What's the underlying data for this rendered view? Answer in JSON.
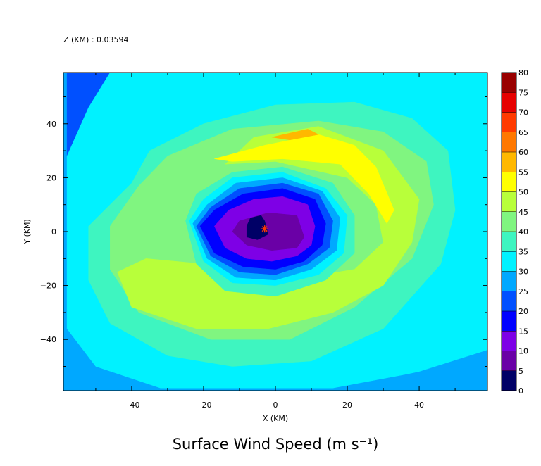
{
  "chart_data": {
    "type": "heatmap",
    "header": "Z (KM) : 0.03594",
    "title": "Surface Wind Speed (m s⁻¹)",
    "xlabel": "X (KM)",
    "ylabel": "Y (KM)",
    "xlim": [
      -59,
      59
    ],
    "ylim": [
      -59,
      59
    ],
    "x_ticks": [
      -40,
      -20,
      0,
      20,
      40
    ],
    "y_ticks": [
      -40,
      -20,
      0,
      20,
      40
    ],
    "x_tick_labels": [
      "−40",
      "−20",
      "0",
      "20",
      "40"
    ],
    "y_tick_labels": [
      "−40",
      "−20",
      "0",
      "20",
      "40"
    ],
    "grid": false,
    "colorbar": {
      "levels": [
        0,
        5,
        10,
        15,
        20,
        25,
        30,
        35,
        40,
        45,
        50,
        55,
        60,
        65,
        70,
        75,
        80
      ],
      "labels": [
        "0",
        "5",
        "10",
        "15",
        "20",
        "25",
        "30",
        "35",
        "40",
        "45",
        "50",
        "55",
        "60",
        "65",
        "70",
        "75",
        "80"
      ],
      "colors": [
        "#000066",
        "#6a00a6",
        "#7e00e6",
        "#0000ff",
        "#0050ff",
        "#00a8ff",
        "#00f2ff",
        "#3ef5c0",
        "#80f580",
        "#b8ff3a",
        "#ffff00",
        "#ffb800",
        "#ff7800",
        "#ff3a00",
        "#e60000",
        "#990000"
      ]
    },
    "storm_center": {
      "x": -3,
      "y": 1,
      "marker": "asterisk",
      "color": "#ff3a00"
    },
    "background_class": 5,
    "regions": [
      {
        "class": 4,
        "pts": [
          [
            -58,
            59
          ],
          [
            -40,
            59
          ],
          [
            -52,
            38
          ],
          [
            -58,
            28
          ]
        ]
      },
      {
        "class": 6,
        "pts": [
          [
            -46,
            59
          ],
          [
            59,
            59
          ],
          [
            59,
            -44
          ],
          [
            40,
            -52
          ],
          [
            16,
            -58
          ],
          [
            -32,
            -58
          ],
          [
            -50,
            -50
          ],
          [
            -58,
            -36
          ],
          [
            -58,
            28
          ],
          [
            -52,
            46
          ]
        ]
      },
      {
        "class": 5,
        "pts": [
          [
            59,
            -44
          ],
          [
            59,
            -59
          ],
          [
            16,
            -59
          ],
          [
            40,
            -52
          ]
        ]
      },
      {
        "class": 7,
        "pts": [
          [
            -40,
            18
          ],
          [
            -35,
            30
          ],
          [
            -20,
            40
          ],
          [
            0,
            47
          ],
          [
            22,
            48
          ],
          [
            38,
            42
          ],
          [
            48,
            30
          ],
          [
            50,
            8
          ],
          [
            46,
            -12
          ],
          [
            30,
            -36
          ],
          [
            10,
            -48
          ],
          [
            -12,
            -50
          ],
          [
            -30,
            -46
          ],
          [
            -46,
            -34
          ],
          [
            -52,
            -18
          ],
          [
            -52,
            2
          ]
        ]
      },
      {
        "class": 8,
        "pts": [
          [
            -38,
            17
          ],
          [
            -30,
            28
          ],
          [
            -12,
            38
          ],
          [
            12,
            41
          ],
          [
            30,
            37
          ],
          [
            42,
            26
          ],
          [
            44,
            10
          ],
          [
            38,
            -10
          ],
          [
            22,
            -28
          ],
          [
            4,
            -40
          ],
          [
            -18,
            -40
          ],
          [
            -38,
            -30
          ],
          [
            -46,
            -14
          ],
          [
            -46,
            2
          ]
        ]
      },
      {
        "class": 9,
        "pts": [
          [
            -14,
            25
          ],
          [
            -6,
            35
          ],
          [
            12,
            39
          ],
          [
            30,
            30
          ],
          [
            40,
            12
          ],
          [
            38,
            -4
          ],
          [
            30,
            -20
          ],
          [
            16,
            -30
          ],
          [
            -2,
            -36
          ],
          [
            -22,
            -36
          ],
          [
            -40,
            -28
          ],
          [
            -44,
            -15
          ],
          [
            -36,
            -10
          ],
          [
            -20,
            -12
          ],
          [
            4,
            -18
          ],
          [
            22,
            -14
          ],
          [
            30,
            -4
          ],
          [
            28,
            10
          ],
          [
            20,
            20
          ],
          [
            0,
            26
          ]
        ]
      },
      {
        "class": 8,
        "pts": [
          [
            -34,
            10
          ],
          [
            -30,
            20
          ],
          [
            -22,
            24
          ],
          [
            -12,
            22
          ],
          [
            -6,
            18
          ],
          [
            -18,
            14
          ],
          [
            -28,
            8
          ]
        ]
      },
      {
        "class": 10,
        "pts": [
          [
            -17,
            27
          ],
          [
            -3,
            32
          ],
          [
            12,
            36
          ],
          [
            22,
            32
          ],
          [
            28,
            24
          ],
          [
            33,
            8
          ],
          [
            31,
            3
          ],
          [
            26,
            14
          ],
          [
            18,
            25
          ],
          [
            2,
            27
          ],
          [
            -12,
            26
          ]
        ]
      },
      {
        "class": 11,
        "pts": [
          [
            -1,
            35
          ],
          [
            9,
            38
          ],
          [
            12,
            36
          ],
          [
            4,
            34
          ]
        ]
      },
      {
        "class": 7,
        "pts": [
          [
            -25,
            4
          ],
          [
            -22,
            14
          ],
          [
            -12,
            22
          ],
          [
            2,
            24
          ],
          [
            16,
            18
          ],
          [
            22,
            6
          ],
          [
            22,
            -8
          ],
          [
            14,
            -18
          ],
          [
            0,
            -24
          ],
          [
            -14,
            -22
          ],
          [
            -22,
            -12
          ]
        ]
      },
      {
        "class": 6,
        "pts": [
          [
            -24,
            4
          ],
          [
            -20,
            12
          ],
          [
            -12,
            20
          ],
          [
            2,
            22
          ],
          [
            14,
            16
          ],
          [
            20,
            6
          ],
          [
            19,
            -8
          ],
          [
            12,
            -16
          ],
          [
            0,
            -20
          ],
          [
            -12,
            -19
          ],
          [
            -20,
            -11
          ]
        ]
      },
      {
        "class": 5,
        "pts": [
          [
            -23,
            3
          ],
          [
            -19,
            10
          ],
          [
            -11,
            18
          ],
          [
            2,
            20
          ],
          [
            13,
            15
          ],
          [
            18,
            5
          ],
          [
            17,
            -7
          ],
          [
            10,
            -14
          ],
          [
            0,
            -18
          ],
          [
            -11,
            -17
          ],
          [
            -19,
            -10
          ]
        ]
      },
      {
        "class": 4,
        "pts": [
          [
            -22,
            2
          ],
          [
            -18,
            9
          ],
          [
            -10,
            16
          ],
          [
            2,
            18
          ],
          [
            12,
            14
          ],
          [
            16,
            4
          ],
          [
            15,
            -6
          ],
          [
            9,
            -12
          ],
          [
            0,
            -16
          ],
          [
            -10,
            -15
          ],
          [
            -18,
            -9
          ]
        ]
      },
      {
        "class": 3,
        "pts": [
          [
            -21,
            2
          ],
          [
            -17,
            8
          ],
          [
            -9,
            14
          ],
          [
            2,
            16
          ],
          [
            11,
            12
          ],
          [
            14,
            3
          ],
          [
            13,
            -5
          ],
          [
            8,
            -11
          ],
          [
            0,
            -14
          ],
          [
            -9,
            -13
          ],
          [
            -17,
            -8
          ]
        ]
      },
      {
        "class": 2,
        "pts": [
          [
            -17,
            2
          ],
          [
            -13,
            8
          ],
          [
            -6,
            12
          ],
          [
            2,
            13
          ],
          [
            9,
            10
          ],
          [
            11,
            2
          ],
          [
            10,
            -5
          ],
          [
            6,
            -9
          ],
          [
            -1,
            -11
          ],
          [
            -8,
            -10
          ],
          [
            -14,
            -6
          ]
        ]
      },
      {
        "class": 1,
        "pts": [
          [
            -10,
            4
          ],
          [
            -2,
            7
          ],
          [
            6,
            6
          ],
          [
            8,
            -2
          ],
          [
            6,
            -6
          ],
          [
            -1,
            -7
          ],
          [
            -8,
            -5
          ],
          [
            -12,
            0
          ]
        ]
      },
      {
        "class": 0,
        "pts": [
          [
            -8,
            2
          ],
          [
            -7,
            5
          ],
          [
            -4,
            6
          ],
          [
            -3,
            4
          ],
          [
            -2,
            -1
          ],
          [
            -5,
            -3
          ],
          [
            -8,
            -2
          ]
        ]
      }
    ]
  }
}
